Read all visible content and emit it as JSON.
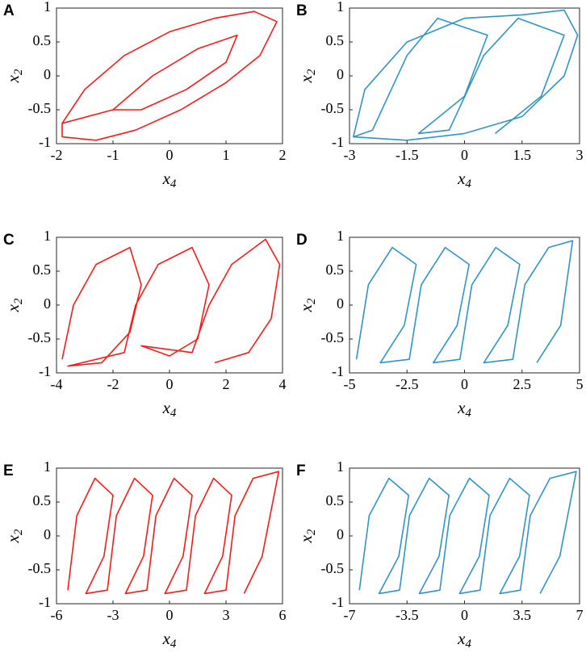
{
  "chart_data": [
    {
      "type": "line",
      "label": "A",
      "color": "#ff0000",
      "x": [
        -1.9,
        -1.5,
        -0.8,
        0,
        0.8,
        1.5,
        1.9,
        1.6,
        1,
        0.2,
        -0.6,
        -1.3,
        -1.9,
        -1.9,
        -1,
        -0.3,
        0.5,
        1.2,
        1,
        0.3,
        -0.5,
        -1
      ],
      "values": [
        -0.7,
        -0.2,
        0.3,
        0.65,
        0.85,
        0.95,
        0.8,
        0.3,
        -0.1,
        -0.5,
        -0.8,
        -0.95,
        -0.9,
        -0.7,
        -0.5,
        0,
        0.4,
        0.6,
        0.2,
        -0.2,
        -0.5,
        -0.5
      ],
      "xlim": [
        -2,
        2
      ],
      "ylim": [
        -1,
        1
      ],
      "xticks": [
        -2,
        -1,
        0,
        1,
        2
      ],
      "yticks": [
        -1,
        -0.5,
        0,
        0.5,
        1
      ],
      "xlabel": "x",
      "xlabel_sub": "4",
      "ylabel": "x",
      "ylabel_sub": "2"
    },
    {
      "type": "line",
      "label": "B",
      "color": "#1b87c2",
      "x": [
        -2.9,
        -2.6,
        -1.5,
        0,
        1.5,
        2.6,
        2.95,
        2.6,
        1.5,
        0,
        -1.5,
        -2.9,
        -2.4,
        -1.5,
        -0.7,
        0.6,
        0,
        -1.2,
        -0.4,
        0.5,
        1.4,
        2.6,
        2,
        0.8
      ],
      "values": [
        -0.9,
        -0.2,
        0.5,
        0.85,
        0.9,
        0.97,
        0.6,
        0,
        -0.6,
        -0.85,
        -0.95,
        -0.9,
        -0.8,
        0.3,
        0.85,
        0.6,
        -0.3,
        -0.85,
        -0.8,
        0.3,
        0.85,
        0.6,
        -0.3,
        -0.85
      ],
      "xlim": [
        -3,
        3
      ],
      "ylim": [
        -1,
        1
      ],
      "xticks": [
        -3,
        -1.5,
        0,
        1.5,
        3
      ],
      "yticks": [
        -1,
        -0.5,
        0,
        0.5,
        1
      ],
      "xlabel": "x",
      "xlabel_sub": "4",
      "ylabel": "x",
      "ylabel_sub": "2"
    },
    {
      "type": "line",
      "label": "C",
      "color": "#ff0000",
      "x": [
        -3.8,
        -3.4,
        -2.6,
        -1.4,
        -1.0,
        -1.4,
        -2.4,
        -3.6,
        -1.6,
        -1.2,
        -0.4,
        0.8,
        1.4,
        1.0,
        0,
        -1.0,
        0.8,
        1.4,
        2.2,
        3.4,
        3.9,
        3.6,
        2.8,
        1.6
      ],
      "values": [
        -0.8,
        0,
        0.6,
        0.85,
        0.3,
        -0.4,
        -0.85,
        -0.9,
        -0.7,
        0,
        0.6,
        0.85,
        0.3,
        -0.5,
        -0.75,
        -0.6,
        -0.7,
        0,
        0.6,
        0.97,
        0.6,
        -0.2,
        -0.7,
        -0.85
      ],
      "xlim": [
        -4,
        4
      ],
      "ylim": [
        -1,
        1
      ],
      "xticks": [
        -4,
        -2,
        0,
        2,
        4
      ],
      "yticks": [
        -1,
        -0.5,
        0,
        0.5,
        1
      ],
      "xlabel": "x",
      "xlabel_sub": "4",
      "ylabel": "x",
      "ylabel_sub": "2"
    },
    {
      "type": "line",
      "label": "D",
      "color": "#1b87c2",
      "x": [
        -4.7,
        -4.18,
        -3.14,
        -2.1,
        -2.62,
        -3.66,
        -2.4,
        -1.88,
        -0.84,
        0.2,
        -0.32,
        -1.36,
        -0.2,
        0.32,
        1.36,
        2.4,
        1.88,
        0.84,
        2.1,
        2.62,
        3.66,
        4.7,
        4.18,
        3.14
      ],
      "values": [
        -0.8,
        0.3,
        0.85,
        0.6,
        -0.3,
        -0.85,
        -0.8,
        0.3,
        0.85,
        0.6,
        -0.3,
        -0.85,
        -0.8,
        0.3,
        0.85,
        0.6,
        -0.3,
        -0.85,
        -0.8,
        0.3,
        0.85,
        0.95,
        -0.3,
        -0.85
      ],
      "xlim": [
        -5,
        5
      ],
      "ylim": [
        -1,
        1
      ],
      "xticks": [
        -5,
        -2.5,
        0,
        2.5,
        5
      ],
      "yticks": [
        -1,
        -0.5,
        0,
        0.5,
        1
      ],
      "xlabel": "x",
      "xlabel_sub": "4",
      "ylabel": "x",
      "ylabel_sub": "2"
    },
    {
      "type": "line",
      "label": "E",
      "color": "#ff0000",
      "x": [
        -5.4,
        -4.92,
        -3.96,
        -3.0,
        -3.48,
        -4.44,
        -3.3,
        -2.82,
        -1.86,
        -0.9,
        -1.38,
        -2.34,
        -1.2,
        -0.72,
        0.24,
        1.2,
        0.72,
        -0.24,
        0.9,
        1.38,
        2.34,
        3.3,
        2.82,
        1.86,
        3.0,
        3.48,
        4.44,
        5.8,
        4.92,
        3.96
      ],
      "values": [
        -0.8,
        0.3,
        0.85,
        0.6,
        -0.3,
        -0.85,
        -0.8,
        0.3,
        0.85,
        0.6,
        -0.3,
        -0.85,
        -0.8,
        0.3,
        0.85,
        0.6,
        -0.3,
        -0.85,
        -0.8,
        0.3,
        0.85,
        0.6,
        -0.3,
        -0.85,
        -0.8,
        0.3,
        0.85,
        0.95,
        -0.3,
        -0.85
      ],
      "xlim": [
        -6,
        6
      ],
      "ylim": [
        -1,
        1
      ],
      "xticks": [
        -6,
        -3,
        0,
        3,
        6
      ],
      "yticks": [
        -1,
        -0.5,
        0,
        0.5,
        1
      ],
      "xlabel": "x",
      "xlabel_sub": "4",
      "ylabel": "x",
      "ylabel_sub": "2"
    },
    {
      "type": "line",
      "label": "F",
      "color": "#1b87c2",
      "x": [
        -6.4,
        -5.8,
        -4.6,
        -3.4,
        -4.0,
        -5.2,
        -3.95,
        -3.35,
        -2.15,
        -0.95,
        -1.55,
        -2.75,
        -1.5,
        -0.9,
        0.3,
        1.5,
        0.9,
        -0.3,
        0.95,
        1.55,
        2.75,
        3.95,
        3.35,
        2.15,
        3.4,
        4.0,
        5.2,
        6.8,
        5.8,
        4.6
      ],
      "values": [
        -0.8,
        0.3,
        0.85,
        0.6,
        -0.3,
        -0.85,
        -0.8,
        0.3,
        0.85,
        0.6,
        -0.3,
        -0.85,
        -0.8,
        0.3,
        0.85,
        0.6,
        -0.3,
        -0.85,
        -0.8,
        0.3,
        0.85,
        0.6,
        -0.3,
        -0.85,
        -0.8,
        0.3,
        0.85,
        0.95,
        -0.3,
        -0.85
      ],
      "xlim": [
        -7,
        7
      ],
      "ylim": [
        -1,
        1
      ],
      "xticks": [
        -7,
        -3.5,
        0,
        3.5,
        7
      ],
      "yticks": [
        -1,
        -0.5,
        0,
        0.5,
        1
      ],
      "xlabel": "x",
      "xlabel_sub": "4",
      "ylabel": "x",
      "ylabel_sub": "2"
    }
  ]
}
